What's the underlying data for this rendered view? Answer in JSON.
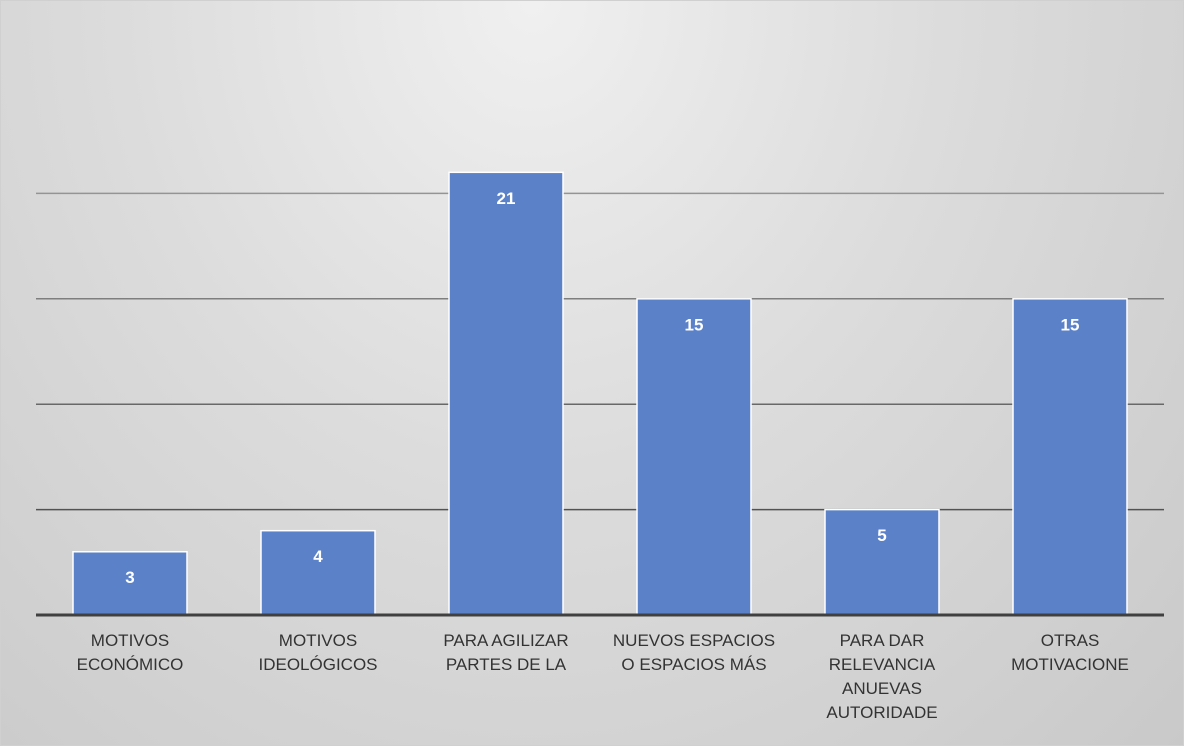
{
  "chart_data": {
    "type": "bar",
    "categories": [
      "MOTIVOS ECONÓMICO",
      "MOTIVOS IDEOLÓGICOS",
      "PARA AGILIZAR PARTES DE LA",
      "NUEVOS ESPACIOS O ESPACIOS MÁS",
      "PARA DAR RELEVANCIA ANUEVAS AUTORIDADE",
      "OTRAS MOTIVACIONE"
    ],
    "values": [
      3,
      4,
      21,
      15,
      5,
      15
    ],
    "color": "#5b82c9",
    "ylim": [
      0,
      25
    ],
    "yticks": [
      0,
      5,
      10,
      15,
      20
    ],
    "grid": true
  }
}
